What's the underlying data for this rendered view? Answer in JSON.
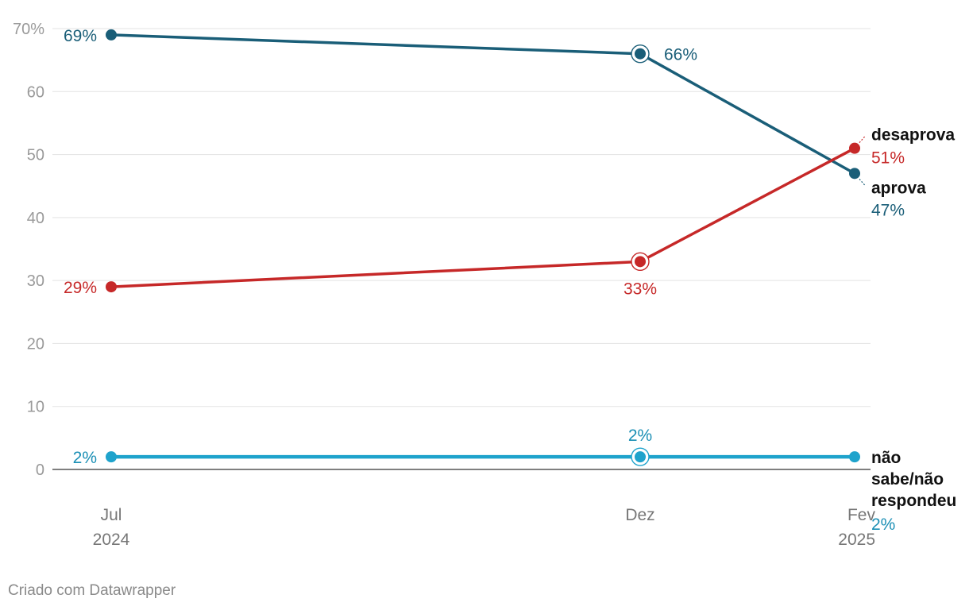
{
  "chart_data": {
    "type": "line",
    "categories": [
      "Jul",
      "Dez",
      "Fev"
    ],
    "category_years": [
      "2024",
      "",
      "2025"
    ],
    "yticks": [
      {
        "value": 0,
        "label": "0"
      },
      {
        "value": 10,
        "label": "10"
      },
      {
        "value": 20,
        "label": "20"
      },
      {
        "value": 30,
        "label": "30"
      },
      {
        "value": 40,
        "label": "40"
      },
      {
        "value": 50,
        "label": "50"
      },
      {
        "value": 60,
        "label": "60"
      },
      {
        "value": 70,
        "label": "70%"
      }
    ],
    "ylim": [
      0,
      70
    ],
    "grid": true,
    "series": [
      {
        "name": "aprova",
        "color": "#1a5e78",
        "values": [
          69,
          66,
          47
        ],
        "labels": [
          "69%",
          "66%",
          "47%"
        ]
      },
      {
        "name": "desaprova",
        "color": "#c62828",
        "values": [
          29,
          33,
          51
        ],
        "labels": [
          "29%",
          "33%",
          "51%"
        ]
      },
      {
        "name": "não sabe/não respondeu",
        "name_lines": [
          "não",
          "sabe/não",
          "respondeu"
        ],
        "color": "#1fa3cc",
        "label_color": "#1b8fb5",
        "values": [
          2,
          2,
          2
        ],
        "labels": [
          "2%",
          "2%",
          "2%"
        ]
      }
    ],
    "highlighted_category": "Dez"
  },
  "footer": {
    "credit": "Criado com Datawrapper"
  }
}
